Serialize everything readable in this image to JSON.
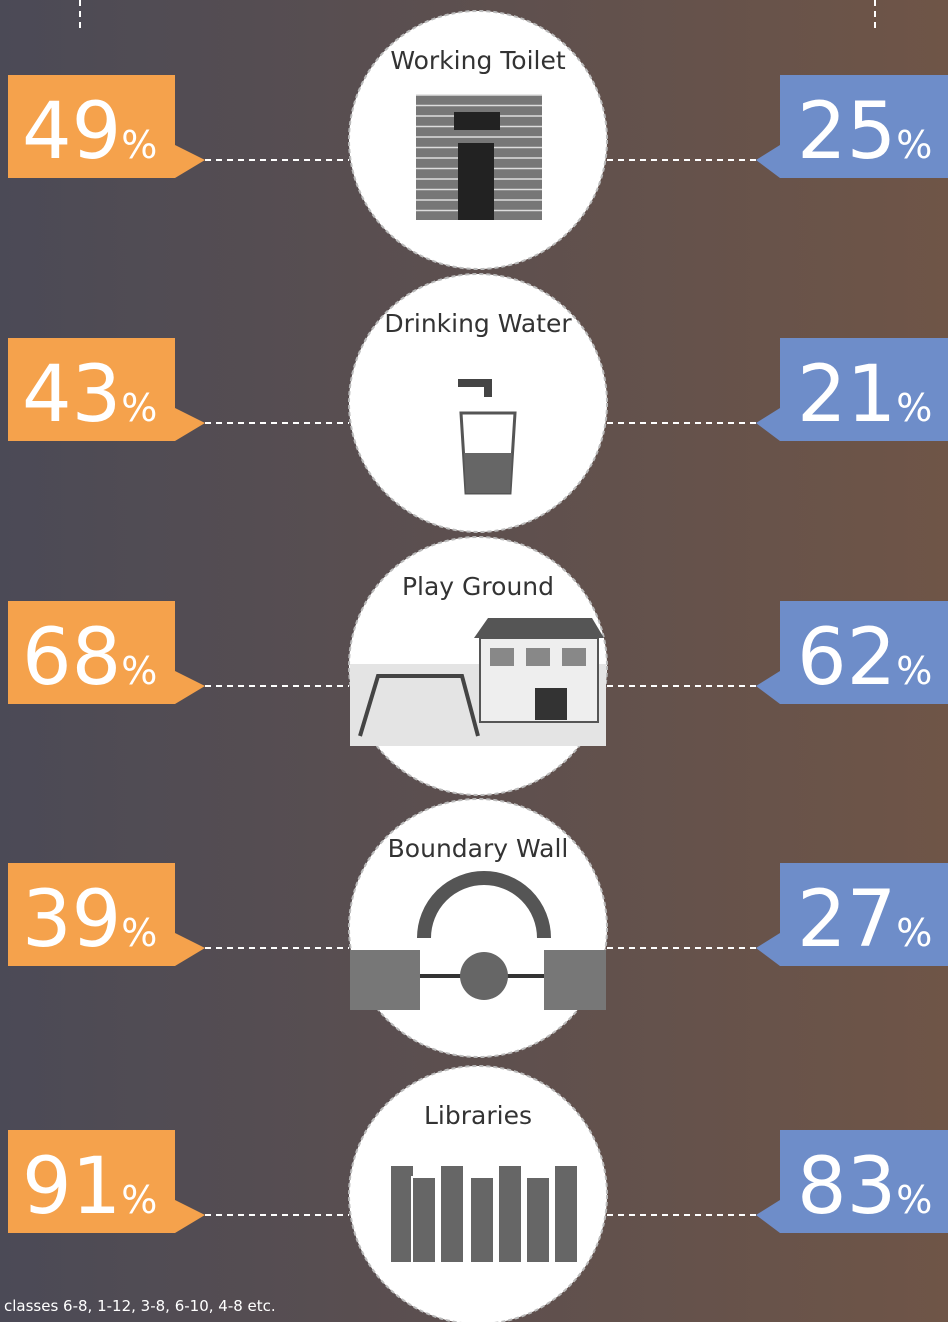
{
  "unit": "%",
  "items": [
    {
      "label": "Working Toilet",
      "left": 49,
      "right": 25
    },
    {
      "label": "Drinking Water",
      "left": 43,
      "right": 21
    },
    {
      "label": "Play Ground",
      "left": 68,
      "right": 62
    },
    {
      "label": "Boundary Wall",
      "left": 39,
      "right": 27
    },
    {
      "label": "Libraries",
      "left": 91,
      "right": 83
    }
  ],
  "footnote": "classes 6-8, 1-12, 3-8, 6-10, 4-8 etc."
}
